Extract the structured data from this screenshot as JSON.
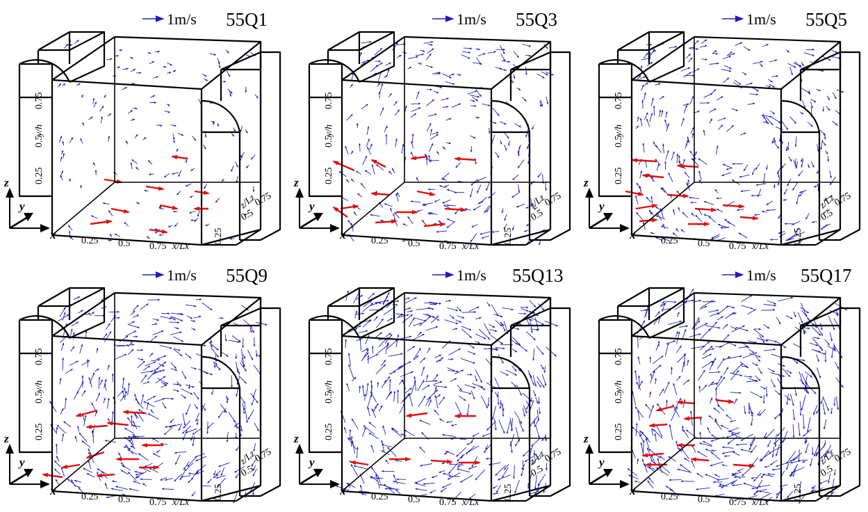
{
  "figure": {
    "scale_label": "1m/s",
    "axis_letters": {
      "z": "z",
      "y": "y",
      "x": "x"
    },
    "axis_labels": {
      "x": "x/Lx",
      "y": "y/h",
      "z": "z/Lz"
    },
    "x_ticks": [
      "0.25",
      "0.5",
      "0.75"
    ],
    "y_ticks": [
      "0.25",
      "0.5",
      "0.75"
    ],
    "z_ticks": [
      "0.25",
      "0.5",
      "0.75"
    ],
    "colors": {
      "frame": "#000000",
      "vector": "#1f1fb8",
      "highlight_vector": "#e01010"
    }
  },
  "panels": [
    {
      "title": "55Q1",
      "density": 0.35,
      "magnitude": 0.35,
      "seed": 11,
      "red_arrows": [
        [
          270,
          228,
          248,
          225
        ],
        [
          150,
          258,
          175,
          262
        ],
        [
          210,
          268,
          235,
          272
        ],
        [
          280,
          275,
          300,
          278
        ],
        [
          160,
          300,
          185,
          305
        ],
        [
          230,
          295,
          255,
          300
        ],
        [
          300,
          300,
          280,
          300
        ],
        [
          130,
          322,
          160,
          318
        ],
        [
          215,
          330,
          240,
          334
        ]
      ]
    },
    {
      "title": "55Q3",
      "density": 0.6,
      "magnitude": 0.6,
      "seed": 23,
      "red_arrows": [
        [
          510,
          245,
          480,
          232
        ],
        [
          555,
          240,
          535,
          230
        ],
        [
          615,
          225,
          592,
          228
        ],
        [
          685,
          230,
          655,
          228
        ],
        [
          560,
          280,
          535,
          278
        ],
        [
          600,
          275,
          625,
          280
        ],
        [
          490,
          300,
          515,
          296
        ],
        [
          570,
          305,
          600,
          305
        ],
        [
          640,
          300,
          670,
          302
        ],
        [
          540,
          320,
          570,
          318
        ],
        [
          610,
          325,
          640,
          322
        ],
        [
          500,
          312,
          480,
          298
        ]
      ]
    },
    {
      "title": "55Q5",
      "density": 0.7,
      "magnitude": 0.6,
      "seed": 37,
      "red_arrows": [
        [
          945,
          232,
          910,
          230
        ],
        [
          1005,
          240,
          975,
          238
        ],
        [
          955,
          255,
          925,
          252
        ],
        [
          960,
          280,
          990,
          282
        ],
        [
          915,
          300,
          945,
          295
        ],
        [
          1000,
          300,
          1030,
          302
        ],
        [
          1040,
          295,
          1070,
          297
        ],
        [
          920,
          318,
          945,
          316
        ],
        [
          990,
          322,
          1020,
          322
        ],
        [
          1065,
          312,
          1090,
          314
        ],
        [
          900,
          275,
          925,
          280
        ]
      ]
    },
    {
      "title": "55Q9",
      "density": 0.85,
      "magnitude": 0.75,
      "seed": 51,
      "red_arrows": [
        [
          210,
          594,
          178,
          592
        ],
        [
          185,
          611,
          155,
          608
        ],
        [
          155,
          612,
          125,
          614
        ],
        [
          140,
          590,
          110,
          598
        ],
        [
          235,
          640,
          205,
          640
        ],
        [
          200,
          660,
          168,
          660
        ],
        [
          150,
          650,
          125,
          658
        ],
        [
          115,
          668,
          90,
          672
        ],
        [
          90,
          686,
          62,
          682
        ],
        [
          165,
          682,
          140,
          684
        ],
        [
          200,
          672,
          228,
          672
        ]
      ]
    },
    {
      "title": "55Q13",
      "density": 0.95,
      "magnitude": 0.9,
      "seed": 67,
      "red_arrows": [
        [
          615,
          594,
          585,
          598
        ],
        [
          685,
          598,
          655,
          598
        ],
        [
          560,
          660,
          590,
          660
        ],
        [
          620,
          662,
          650,
          664
        ],
        [
          660,
          665,
          690,
          665
        ],
        [
          530,
          668,
          505,
          664
        ]
      ]
    },
    {
      "title": "55Q17",
      "density": 1.0,
      "magnitude": 0.95,
      "seed": 83,
      "red_arrows": [
        [
          970,
          584,
          945,
          590
        ],
        [
          1030,
          575,
          1055,
          578
        ],
        [
          1010,
          600,
          985,
          602
        ],
        [
          960,
          610,
          935,
          612
        ],
        [
          1000,
          640,
          975,
          640
        ],
        [
          955,
          652,
          925,
          655
        ],
        [
          1020,
          662,
          995,
          660
        ],
        [
          960,
          668,
          930,
          668
        ],
        [
          1055,
          668,
          1085,
          670
        ],
        [
          1000,
          580,
          975,
          578
        ]
      ]
    }
  ]
}
